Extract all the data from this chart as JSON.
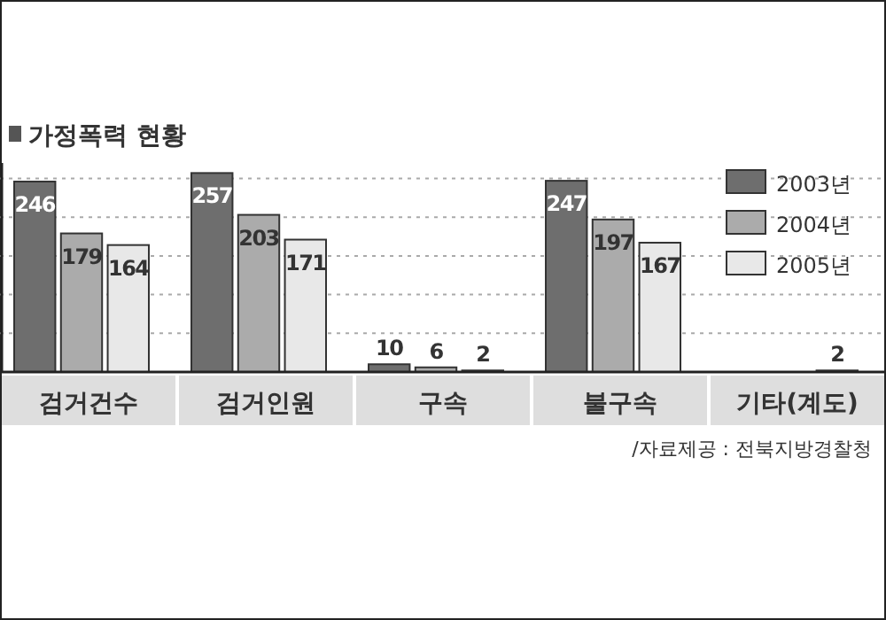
{
  "chart_data": {
    "type": "bar",
    "title": "가정폭력 현황",
    "categories": [
      "검거건수",
      "검거인원",
      "구속",
      "불구속",
      "기타(계도)"
    ],
    "series": [
      {
        "name": "2003년",
        "color": "#6e6e6e",
        "values": [
          246,
          257,
          10,
          247,
          null
        ]
      },
      {
        "name": "2004년",
        "color": "#ababab",
        "values": [
          179,
          203,
          6,
          197,
          null
        ]
      },
      {
        "name": "2005년",
        "color": "#e8e8e8",
        "values": [
          164,
          171,
          2,
          167,
          2
        ]
      }
    ],
    "ylim": [
      0,
      270
    ],
    "yticks": [
      {
        "value": 50,
        "label": null
      },
      {
        "value": 100,
        "label": null
      },
      {
        "value": 150,
        "label": null
      },
      {
        "value": 200,
        "label": null
      },
      {
        "value": 250,
        "label": null
      }
    ],
    "grid": "y",
    "tick_labels": "x",
    "data_labels": true,
    "legend": "top right",
    "annotations": [
      "/자료제공 : 전북지방경찰청"
    ]
  }
}
